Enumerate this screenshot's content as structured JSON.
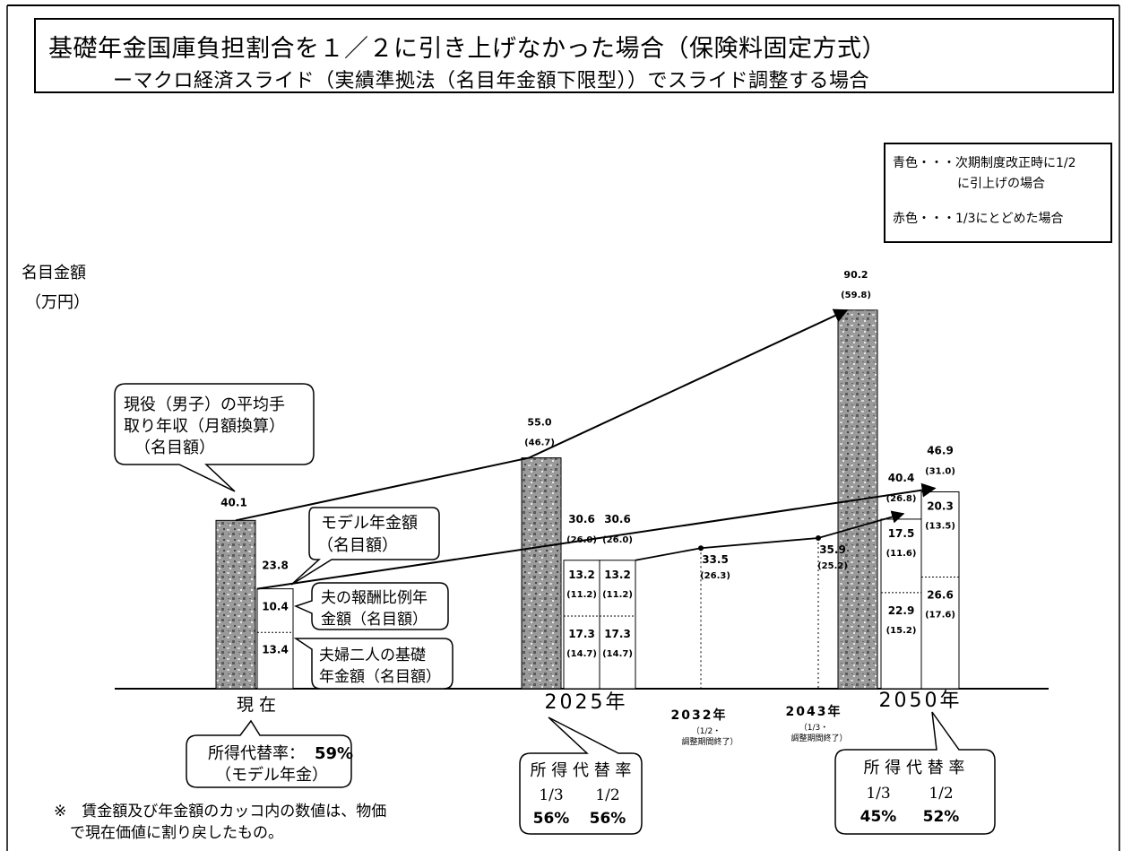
{
  "header": {
    "title": "基礎年金国庫負担割合を１／２に引き上げなかった場合（保険料固定方式）",
    "subtitle": "ーマクロ経済スライド（実績準拠法（名目年金額下限型））でスライド調整する場合"
  },
  "legend": {
    "blue_line1": "青色・・・次期制度改正時に1/2",
    "blue_line2": "に引上げの場合",
    "red_line": "赤色・・・1/3にとどめた場合"
  },
  "y_axis": {
    "label": "名目金額",
    "unit": "（万円）"
  },
  "chart_data": {
    "type": "bar",
    "title": "基礎年金国庫負担割合を１／２に引き上げなかった場合（保険料固定方式）",
    "categories": [
      "現 在",
      "2025年",
      "2032年",
      "2043年",
      "2050年"
    ],
    "wage_bars": [
      {
        "category": "現 在",
        "label": "40.1",
        "value": 40.1
      },
      {
        "category": "2025年",
        "label": "55.0",
        "sub": "(46.7)",
        "value": 55.0
      },
      {
        "category": "2050年",
        "label": "90.2",
        "sub": "(59.8)",
        "value": 90.2
      }
    ],
    "pension_bars": [
      {
        "category": "現 在",
        "total_label": "23.8",
        "total": 23.8,
        "hoshu": 10.4,
        "hoshu_label": "10.4",
        "kiso": 13.4,
        "kiso_label": "13.4"
      },
      {
        "category": "2025年",
        "scenario": "1/3",
        "total_label": "30.6",
        "total_sub": "(26.0)",
        "total": 30.6,
        "hoshu": 13.2,
        "hoshu_label": "13.2",
        "hoshu_sub": "(11.2)",
        "kiso": 17.3,
        "kiso_label": "17.3",
        "kiso_sub": "(14.7)"
      },
      {
        "category": "2025年",
        "scenario": "1/2",
        "total_label": "30.6",
        "total_sub": "(26.0)",
        "total": 30.6,
        "hoshu": 13.2,
        "hoshu_label": "13.2",
        "hoshu_sub": "(11.2)",
        "kiso": 17.3,
        "kiso_label": "17.3",
        "kiso_sub": "(14.7)"
      },
      {
        "category": "2050年",
        "scenario": "1/3",
        "total_label": "40.4",
        "total_sub": "(26.8)",
        "total": 40.4,
        "hoshu": 17.5,
        "hoshu_label": "17.5",
        "hoshu_sub": "(11.6)",
        "kiso": 22.9,
        "kiso_label": "22.9",
        "kiso_sub": "(15.2)"
      },
      {
        "category": "2050年",
        "scenario": "1/2",
        "total_label": "46.9",
        "total_sub": "(31.0)",
        "total": 46.9,
        "hoshu": 20.3,
        "hoshu_label": "20.3",
        "hoshu_sub": "(13.5)",
        "kiso": 26.6,
        "kiso_label": "26.6",
        "kiso_sub": "(17.6)"
      }
    ],
    "pension_points": [
      {
        "category": "2032年",
        "value": 33.5,
        "label": "33.5",
        "sub": "(26.3)"
      },
      {
        "category": "2043年",
        "value": 35.9,
        "label": "35.9",
        "sub": "(25.2)"
      }
    ],
    "sub_labels": {
      "y2032": "（1/2・",
      "y2032b": "調整期間終了）",
      "y2043": "（1/3・",
      "y2043b": "調整期間終了）"
    },
    "ylim": [
      0,
      100
    ],
    "colors": {
      "wage_bar": "#8c8c8c",
      "pension_bar": "#ffffff"
    }
  },
  "callouts": {
    "wage": [
      "現役（男子）の平均手",
      "取り年収（月額換算）",
      "（名目額）"
    ],
    "model": [
      "モデル年金額",
      "（名目額）"
    ],
    "hoshu": [
      "夫の報酬比例年",
      "金額（名目額）"
    ],
    "kiso": [
      "夫婦二人の基礎",
      "年金額（名目額）"
    ]
  },
  "replacement": {
    "now_line1_prefix": "所得代替率：",
    "now_line1_value": "59%",
    "now_line2": "（モデル年金）",
    "y2025_title": "所 得 代 替 率",
    "y2025_cases": [
      "1/3",
      "1/2"
    ],
    "y2025_values": [
      "56%",
      "56%"
    ],
    "y2050_title": "所 得 代 替 率",
    "y2050_cases": [
      "1/3",
      "1/2"
    ],
    "y2050_values": [
      "45%",
      "52%"
    ]
  },
  "footnote": {
    "line1": "※　賃金額及び年金額のカッコ内の数値は、物価",
    "line2": "で現在価値に割り戻したもの。"
  }
}
